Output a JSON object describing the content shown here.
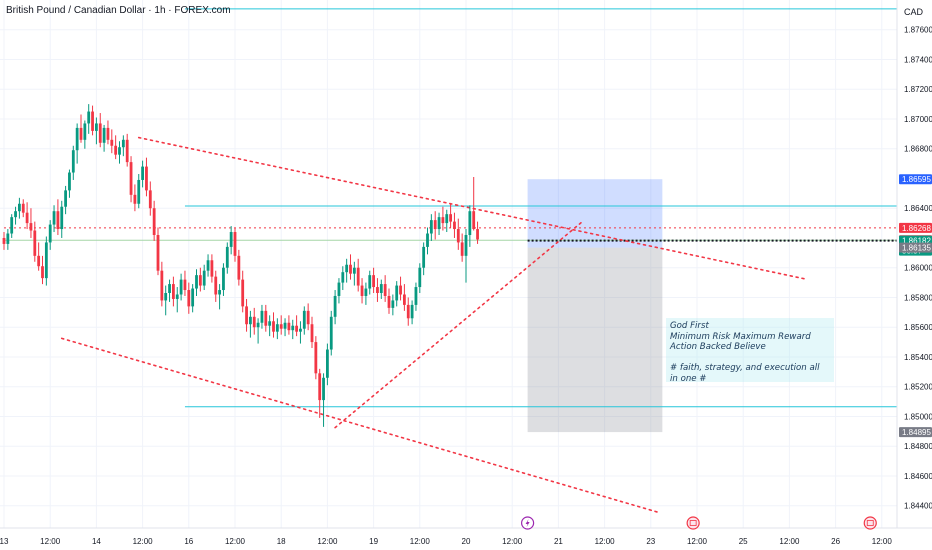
{
  "header": {
    "title": "British Pound / Canadian Dollar · 1h · FOREX.com",
    "currency": "CAD"
  },
  "note": {
    "lines": [
      "God First",
      "Minimum Risk Maximum Reward",
      "Action Backed Believe",
      "",
      "# faith, strategy, and execution all in one #"
    ]
  },
  "chart_data": {
    "type": "candlestick",
    "ylim": [
      1.8425,
      1.878
    ],
    "y_ticks": [
      "1.87600",
      "1.87400",
      "1.87200",
      "1.87000",
      "1.86800",
      "1.86400",
      "1.86000",
      "1.85800",
      "1.85600",
      "1.85400",
      "1.85200",
      "1.85000",
      "1.84800",
      "1.84600",
      "1.84400"
    ],
    "x_ticks": [
      {
        "label": "13",
        "t": 0
      },
      {
        "label": "12:00",
        "t": 12
      },
      {
        "label": "14",
        "t": 24
      },
      {
        "label": "12:00",
        "t": 36
      },
      {
        "label": "16",
        "t": 48
      },
      {
        "label": "12:00",
        "t": 60
      },
      {
        "label": "18",
        "t": 72
      },
      {
        "label": "12:00",
        "t": 84
      },
      {
        "label": "19",
        "t": 96
      },
      {
        "label": "12:00",
        "t": 108
      },
      {
        "label": "20",
        "t": 120
      },
      {
        "label": "12:00",
        "t": 132
      },
      {
        "label": "21",
        "t": 144
      },
      {
        "label": "12:00",
        "t": 156
      },
      {
        "label": "23",
        "t": 168
      },
      {
        "label": "12:00",
        "t": 180
      },
      {
        "label": "25",
        "t": 192
      },
      {
        "label": "12:00",
        "t": 204
      },
      {
        "label": "26",
        "t": 216
      },
      {
        "label": "12:00",
        "t": 228
      }
    ],
    "price_badges": [
      {
        "price": 1.86595,
        "label": "1.86595",
        "color": "#2962ff"
      },
      {
        "price": 1.86268,
        "label": "1.86268",
        "color": "#f23645"
      },
      {
        "price": 1.86185,
        "label": "1.86185",
        "color": "#f23645"
      },
      {
        "price": 1.86182,
        "label": "1.86182",
        "label2": "58:37",
        "color": "#089981"
      },
      {
        "price": 1.86135,
        "label": "1.86135",
        "color": "#787b86"
      },
      {
        "price": 1.84895,
        "label": "1.84895",
        "color": "#787b86"
      }
    ],
    "horizontal_lines": [
      {
        "price": 1.8774,
        "style": "solid",
        "color": "#26c6da",
        "from_t": 47
      },
      {
        "price": 1.86415,
        "style": "solid",
        "color": "#26c6da",
        "from_t": 47
      },
      {
        "price": 1.85065,
        "style": "solid",
        "color": "#26c6da",
        "from_t": 47
      },
      {
        "price": 1.86268,
        "style": "dotted",
        "color": "#f23645",
        "from_t": 0
      },
      {
        "price": 1.86185,
        "style": "solid",
        "color": "#a5d6a7",
        "from_t": 0
      },
      {
        "price": 1.86182,
        "style": "dotted-bold",
        "color": "#131722",
        "from_t": 136
      }
    ],
    "trend_lines": [
      {
        "t1": 35,
        "p1": 1.86875,
        "t2": 208,
        "p2": 1.85925
      },
      {
        "t1": 15,
        "p1": 1.85525,
        "t2": 170,
        "p2": 1.84355
      },
      {
        "t1": 86,
        "p1": 1.84925,
        "t2": 150,
        "p2": 1.86305
      }
    ],
    "positions": {
      "start_t": 136,
      "end_t": 171,
      "target": 1.86595,
      "entry": 1.86135,
      "stop": 1.84895
    },
    "event_markers": [
      {
        "t": 136,
        "type": "lightning"
      },
      {
        "t": 179,
        "type": "flag"
      },
      {
        "t": 225,
        "type": "flag"
      }
    ],
    "candles": [
      [
        1.862,
        1.8624,
        1.8612,
        1.8616
      ],
      [
        1.8616,
        1.8626,
        1.8612,
        1.8623
      ],
      [
        1.8623,
        1.8636,
        1.862,
        1.8634
      ],
      [
        1.8634,
        1.8641,
        1.8629,
        1.8638
      ],
      [
        1.8638,
        1.8647,
        1.8633,
        1.8643
      ],
      [
        1.8643,
        1.8646,
        1.8634,
        1.8637
      ],
      [
        1.8637,
        1.8644,
        1.8626,
        1.863
      ],
      [
        1.863,
        1.864,
        1.862,
        1.8625
      ],
      [
        1.8625,
        1.8631,
        1.8604,
        1.8608
      ],
      [
        1.8608,
        1.8617,
        1.8598,
        1.8601
      ],
      [
        1.8601,
        1.8608,
        1.8589,
        1.8593
      ],
      [
        1.8593,
        1.8621,
        1.8588,
        1.8617
      ],
      [
        1.8617,
        1.8632,
        1.8612,
        1.8629
      ],
      [
        1.8629,
        1.8642,
        1.8624,
        1.8638
      ],
      [
        1.8638,
        1.8646,
        1.8622,
        1.8626
      ],
      [
        1.8626,
        1.8645,
        1.862,
        1.8641
      ],
      [
        1.8641,
        1.8655,
        1.8636,
        1.8652
      ],
      [
        1.8652,
        1.8666,
        1.8647,
        1.8664
      ],
      [
        1.8664,
        1.8682,
        1.8659,
        1.8679
      ],
      [
        1.8679,
        1.8697,
        1.867,
        1.8694
      ],
      [
        1.8694,
        1.8703,
        1.8684,
        1.8686
      ],
      [
        1.8686,
        1.8699,
        1.868,
        1.8697
      ],
      [
        1.8697,
        1.871,
        1.869,
        1.8705
      ],
      [
        1.8705,
        1.8709,
        1.8689,
        1.8692
      ],
      [
        1.8692,
        1.8701,
        1.8683,
        1.8697
      ],
      [
        1.8697,
        1.8704,
        1.8681,
        1.8684
      ],
      [
        1.8684,
        1.8696,
        1.8678,
        1.8694
      ],
      [
        1.8694,
        1.8699,
        1.8683,
        1.8686
      ],
      [
        1.8686,
        1.8693,
        1.8677,
        1.8682
      ],
      [
        1.8682,
        1.8689,
        1.8673,
        1.8676
      ],
      [
        1.8676,
        1.8685,
        1.867,
        1.8681
      ],
      [
        1.8681,
        1.8689,
        1.8675,
        1.8686
      ],
      [
        1.8686,
        1.869,
        1.8668,
        1.8671
      ],
      [
        1.8671,
        1.8675,
        1.8644,
        1.8649
      ],
      [
        1.8649,
        1.8656,
        1.8638,
        1.8643
      ],
      [
        1.8643,
        1.8663,
        1.864,
        1.8659
      ],
      [
        1.8659,
        1.8672,
        1.8654,
        1.8668
      ],
      [
        1.8668,
        1.8674,
        1.8648,
        1.8652
      ],
      [
        1.8652,
        1.8658,
        1.8635,
        1.864
      ],
      [
        1.864,
        1.8645,
        1.8618,
        1.8622
      ],
      [
        1.8622,
        1.8627,
        1.8595,
        1.8598
      ],
      [
        1.8598,
        1.8604,
        1.8574,
        1.8578
      ],
      [
        1.8578,
        1.8588,
        1.8568,
        1.8583
      ],
      [
        1.8583,
        1.8592,
        1.8577,
        1.8589
      ],
      [
        1.8589,
        1.8594,
        1.8574,
        1.8579
      ],
      [
        1.8579,
        1.8587,
        1.857,
        1.8582
      ],
      [
        1.8582,
        1.8596,
        1.8578,
        1.8592
      ],
      [
        1.8592,
        1.8598,
        1.8581,
        1.8585
      ],
      [
        1.8585,
        1.859,
        1.8569,
        1.8574
      ],
      [
        1.8574,
        1.8589,
        1.857,
        1.8586
      ],
      [
        1.8586,
        1.8599,
        1.8581,
        1.8595
      ],
      [
        1.8595,
        1.86,
        1.8584,
        1.8588
      ],
      [
        1.8588,
        1.8602,
        1.8585,
        1.8598
      ],
      [
        1.8598,
        1.8609,
        1.8594,
        1.8605
      ],
      [
        1.8605,
        1.8609,
        1.859,
        1.8594
      ],
      [
        1.8594,
        1.8598,
        1.8577,
        1.8582
      ],
      [
        1.8582,
        1.8589,
        1.8572,
        1.8585
      ],
      [
        1.8585,
        1.8603,
        1.8581,
        1.86
      ],
      [
        1.86,
        1.8617,
        1.8596,
        1.8614
      ],
      [
        1.8614,
        1.8628,
        1.8609,
        1.8624
      ],
      [
        1.8624,
        1.8627,
        1.8604,
        1.8608
      ],
      [
        1.8608,
        1.8612,
        1.8588,
        1.8592
      ],
      [
        1.8592,
        1.8598,
        1.857,
        1.8574
      ],
      [
        1.8574,
        1.8579,
        1.8557,
        1.8562
      ],
      [
        1.8562,
        1.8571,
        1.8553,
        1.8567
      ],
      [
        1.8567,
        1.8573,
        1.8555,
        1.856
      ],
      [
        1.856,
        1.8566,
        1.8549,
        1.8563
      ],
      [
        1.8563,
        1.8575,
        1.8559,
        1.8571
      ],
      [
        1.8571,
        1.8575,
        1.8557,
        1.8561
      ],
      [
        1.8561,
        1.8568,
        1.8554,
        1.8564
      ],
      [
        1.8564,
        1.857,
        1.8553,
        1.8557
      ],
      [
        1.8557,
        1.8566,
        1.8552,
        1.8562
      ],
      [
        1.8562,
        1.8568,
        1.8555,
        1.8559
      ],
      [
        1.8559,
        1.8566,
        1.8554,
        1.8563
      ],
      [
        1.8563,
        1.8568,
        1.8555,
        1.8558
      ],
      [
        1.8558,
        1.8565,
        1.8552,
        1.8561
      ],
      [
        1.8561,
        1.8568,
        1.8554,
        1.8557
      ],
      [
        1.8557,
        1.8564,
        1.8549,
        1.8559
      ],
      [
        1.8559,
        1.8574,
        1.8555,
        1.8571
      ],
      [
        1.8571,
        1.8576,
        1.8558,
        1.8562
      ],
      [
        1.8562,
        1.8567,
        1.8546,
        1.855
      ],
      [
        1.855,
        1.8554,
        1.8525,
        1.8529
      ],
      [
        1.8529,
        1.8532,
        1.8499,
        1.8511
      ],
      [
        1.8511,
        1.8529,
        1.8493,
        1.8526
      ],
      [
        1.8526,
        1.8549,
        1.8521,
        1.8545
      ],
      [
        1.8545,
        1.8571,
        1.8541,
        1.8567
      ],
      [
        1.8567,
        1.8585,
        1.8562,
        1.8581
      ],
      [
        1.8581,
        1.8593,
        1.8576,
        1.859
      ],
      [
        1.859,
        1.8601,
        1.8585,
        1.8597
      ],
      [
        1.8597,
        1.8606,
        1.859,
        1.8602
      ],
      [
        1.8602,
        1.8609,
        1.8592,
        1.8596
      ],
      [
        1.8596,
        1.8604,
        1.8588,
        1.86
      ],
      [
        1.86,
        1.8606,
        1.8584,
        1.8588
      ],
      [
        1.8588,
        1.8593,
        1.8576,
        1.8581
      ],
      [
        1.8581,
        1.859,
        1.8575,
        1.8586
      ],
      [
        1.8586,
        1.8598,
        1.8582,
        1.8595
      ],
      [
        1.8595,
        1.86,
        1.8583,
        1.8587
      ],
      [
        1.8587,
        1.8593,
        1.8577,
        1.8583
      ],
      [
        1.8583,
        1.8592,
        1.8579,
        1.8589
      ],
      [
        1.8589,
        1.8595,
        1.8577,
        1.8581
      ],
      [
        1.8581,
        1.8586,
        1.8569,
        1.8573
      ],
      [
        1.8573,
        1.8582,
        1.8568,
        1.8578
      ],
      [
        1.8578,
        1.8591,
        1.8574,
        1.8588
      ],
      [
        1.8588,
        1.8594,
        1.8578,
        1.8582
      ],
      [
        1.8582,
        1.8589,
        1.8571,
        1.8575
      ],
      [
        1.8575,
        1.858,
        1.8561,
        1.8566
      ],
      [
        1.8566,
        1.8578,
        1.8562,
        1.8575
      ],
      [
        1.8575,
        1.859,
        1.8571,
        1.8587
      ],
      [
        1.8587,
        1.8603,
        1.8583,
        1.86
      ],
      [
        1.86,
        1.8617,
        1.8595,
        1.8614
      ],
      [
        1.8614,
        1.8627,
        1.8609,
        1.8623
      ],
      [
        1.8623,
        1.8636,
        1.8618,
        1.8632
      ],
      [
        1.8632,
        1.8638,
        1.8619,
        1.8626
      ],
      [
        1.8626,
        1.8637,
        1.8622,
        1.8634
      ],
      [
        1.8634,
        1.8641,
        1.8625,
        1.863
      ],
      [
        1.863,
        1.8639,
        1.8624,
        1.8636
      ],
      [
        1.8636,
        1.8643,
        1.8627,
        1.8631
      ],
      [
        1.8631,
        1.8637,
        1.862,
        1.8626
      ],
      [
        1.8626,
        1.8633,
        1.8612,
        1.8617
      ],
      [
        1.8617,
        1.8623,
        1.8604,
        1.8608
      ],
      [
        1.8608,
        1.8626,
        1.859,
        1.8622
      ],
      [
        1.8622,
        1.8642,
        1.8614,
        1.8638
      ],
      [
        1.8638,
        1.8661,
        1.8625,
        1.8626
      ],
      [
        1.8626,
        1.8631,
        1.8616,
        1.8619
      ]
    ]
  }
}
